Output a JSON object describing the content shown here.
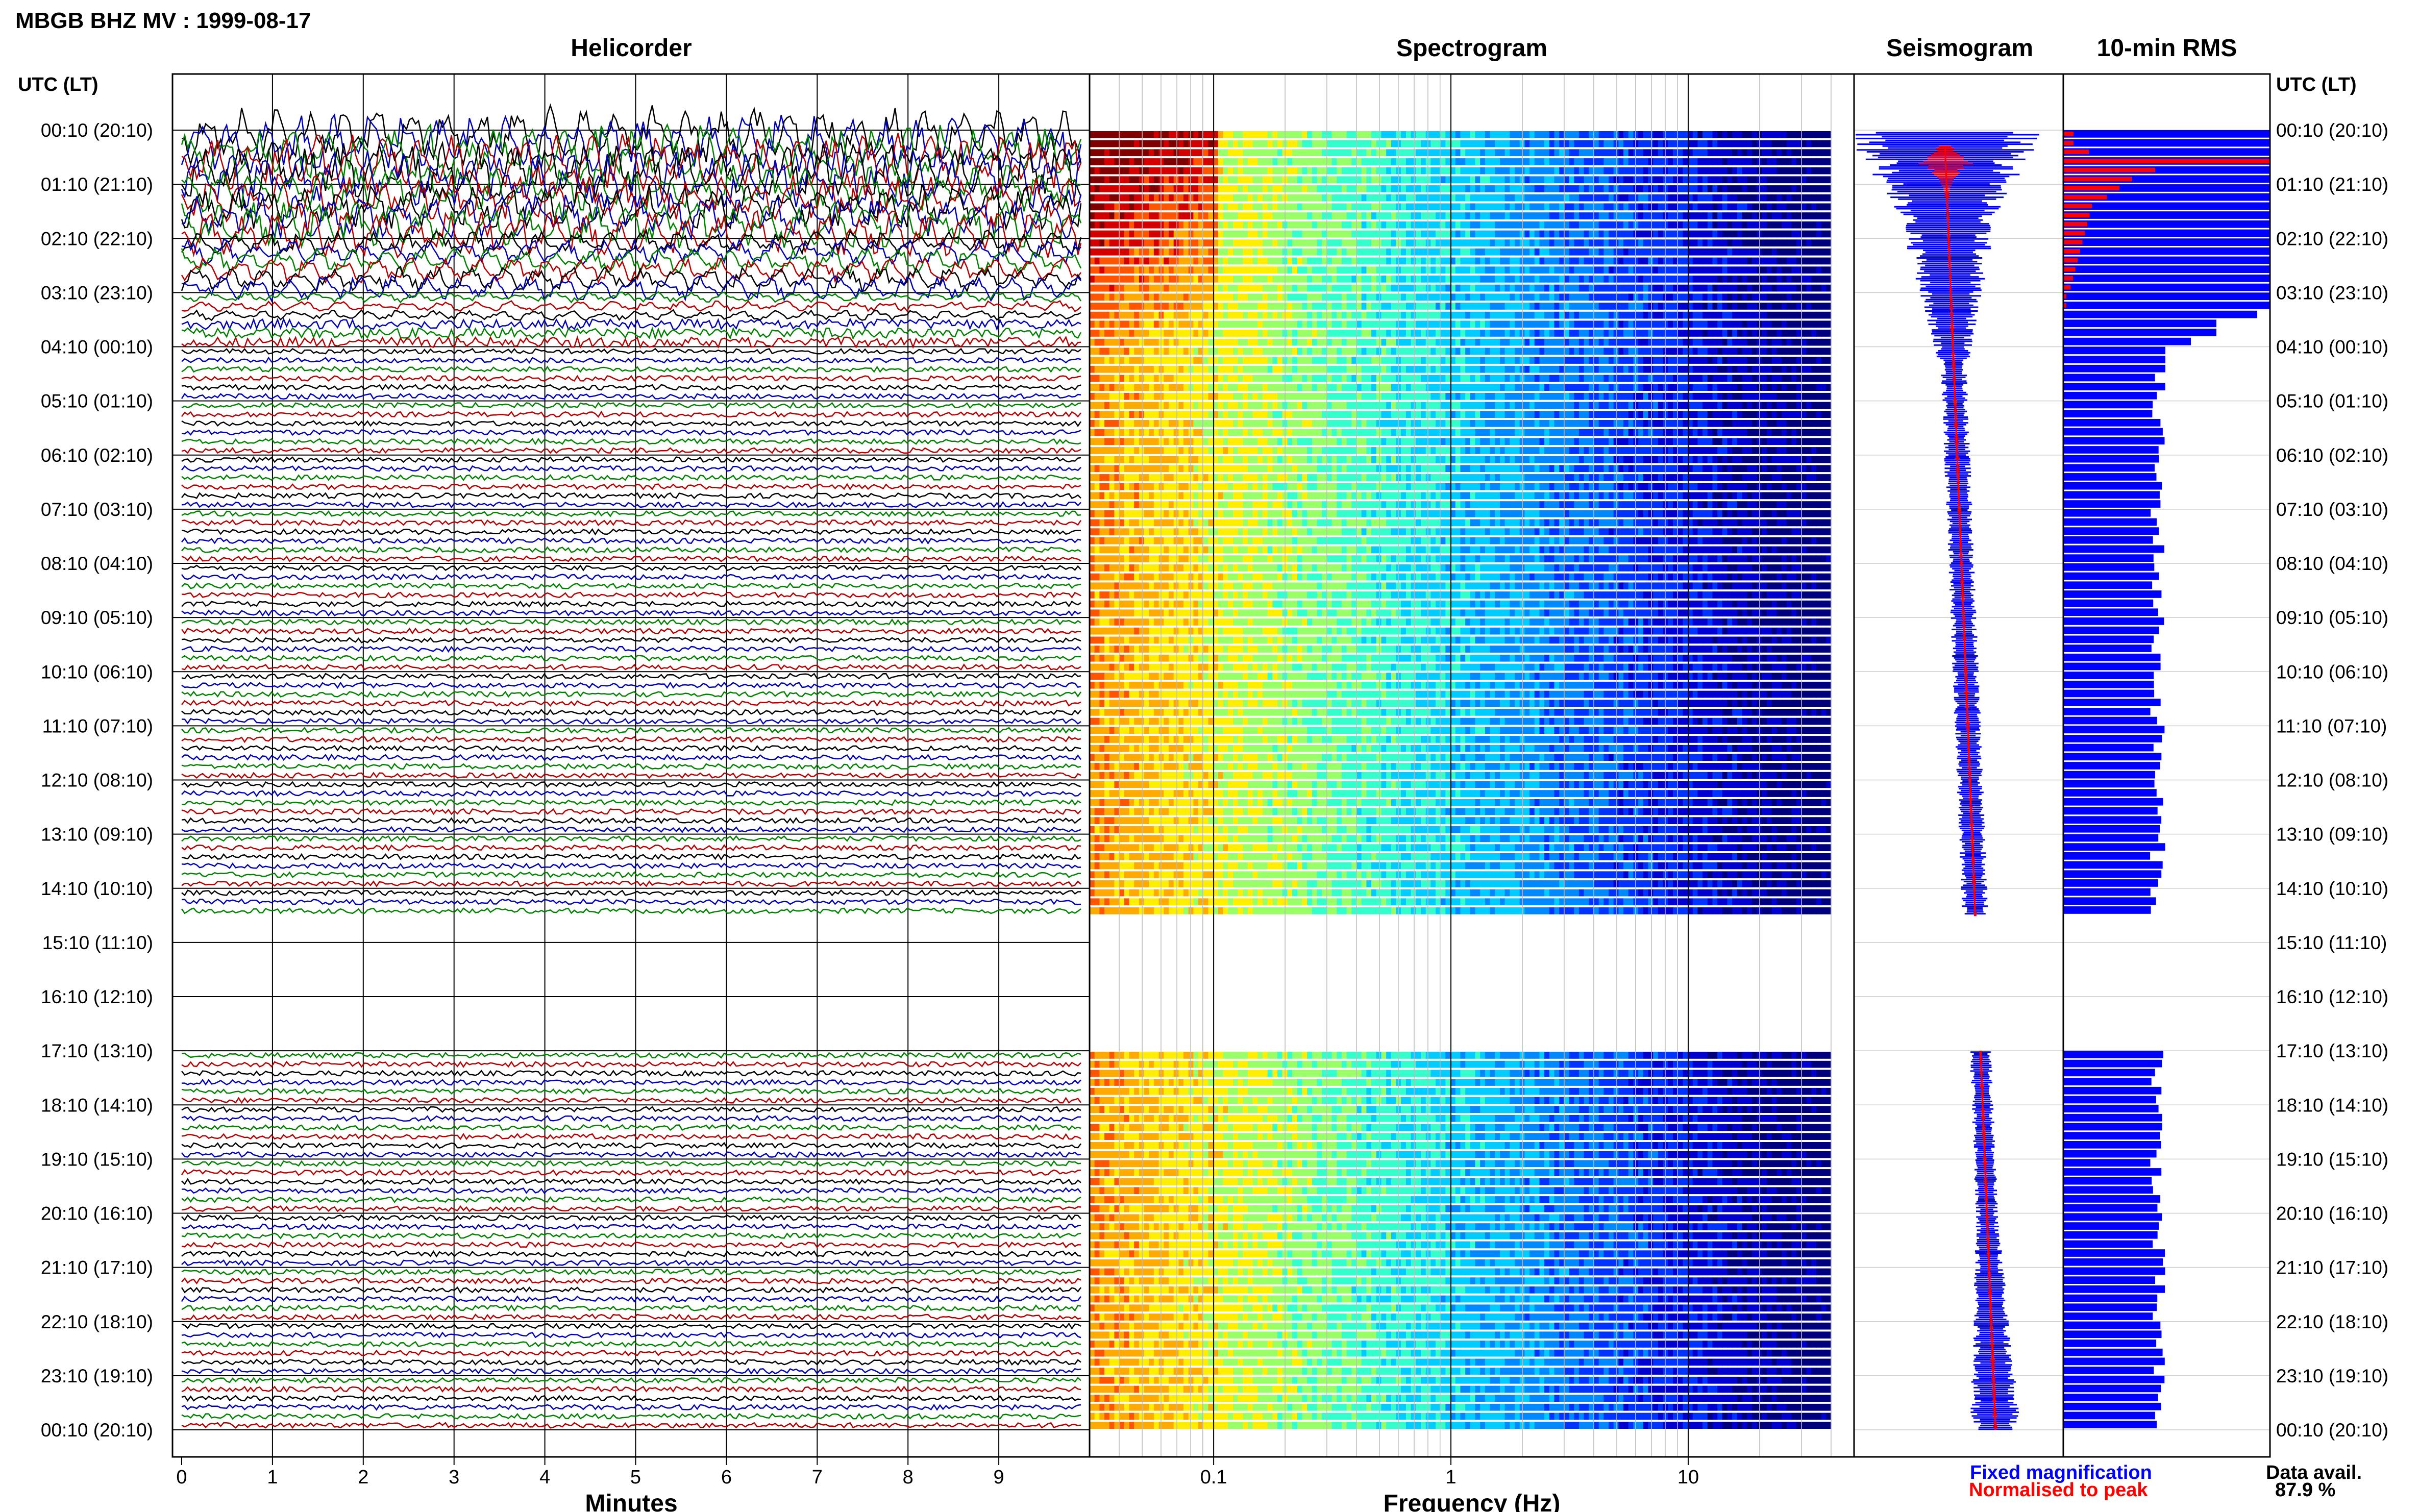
{
  "title": "MBGB BHZ MV : 1999-08-17",
  "panels": {
    "helicorder": "Helicorder",
    "spectrogram": "Spectrogram",
    "seismogram": "Seismogram",
    "rms": "10-min RMS"
  },
  "time_axis_header": "UTC (LT)",
  "row_labels": [
    "00:10 (20:10)",
    "01:10 (21:10)",
    "02:10 (22:10)",
    "03:10 (23:10)",
    "04:10 (00:10)",
    "05:10 (01:10)",
    "06:10 (02:10)",
    "07:10 (03:10)",
    "08:10 (04:10)",
    "09:10 (05:10)",
    "10:10 (06:10)",
    "11:10 (07:10)",
    "12:10 (08:10)",
    "13:10 (09:10)",
    "14:10 (10:10)",
    "15:10 (11:10)",
    "16:10 (12:10)",
    "17:10 (13:10)",
    "18:10 (14:10)",
    "19:10 (15:10)",
    "20:10 (16:10)",
    "21:10 (17:10)",
    "22:10 (18:10)",
    "23:10 (19:10)",
    "00:10 (20:10)"
  ],
  "colors": {
    "trace_cycle": [
      "#000000",
      "#0000b4",
      "#008200",
      "#b40000"
    ],
    "fixed": "#0000ff",
    "normalised": "#ff0000"
  },
  "legend": {
    "fixed": "Fixed magnification",
    "normalised": "Normalised to peak"
  },
  "data_availability": {
    "label": "Data avail.",
    "value": "87.9 %"
  },
  "chart_data": [
    {
      "type": "line",
      "name": "helicorder",
      "xlabel": "Minutes",
      "xlim": [
        0,
        10
      ],
      "xticks": [
        0,
        1,
        2,
        3,
        4,
        5,
        6,
        7,
        8,
        9
      ],
      "trace_interval_minutes": 10,
      "traces_per_hour": 6,
      "data_gap_utc_hours": [
        14.5,
        17.0
      ]
    },
    {
      "type": "heatmap",
      "name": "spectrogram",
      "xlabel": "Frequency (Hz)",
      "xscale": "log",
      "xlim": [
        0.03,
        50
      ],
      "xticks": [
        0.1,
        1,
        10
      ],
      "freq_band_max_hz": 40,
      "colormap": "jet"
    },
    {
      "type": "line",
      "name": "seismogram",
      "series": [
        "fixed",
        "normalised"
      ]
    },
    {
      "type": "bar",
      "name": "10-min RMS",
      "orientation": "horizontal",
      "series": [
        "fixed",
        "normalised"
      ]
    }
  ]
}
